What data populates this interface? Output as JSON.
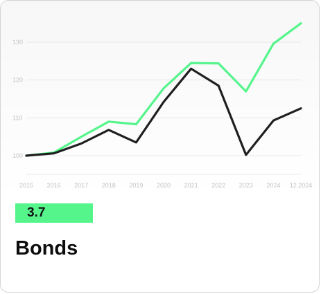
{
  "card": {
    "value": "3.7",
    "title": "Bonds"
  },
  "colors": {
    "accent": "#55f58c",
    "line_green": "#55f58c",
    "line_black": "#1f1f1f",
    "tick": "#c2c2c2",
    "grid": "#e8e8e8"
  },
  "chart_data": {
    "type": "line",
    "categories": [
      "2015",
      "2016",
      "2017",
      "2018",
      "2019",
      "2020",
      "2021",
      "2022",
      "2023",
      "2024",
      "12.2024"
    ],
    "y_ticks": [
      100,
      110,
      120,
      130
    ],
    "ylim": [
      96,
      137
    ],
    "grid": "horizontal",
    "series": [
      {
        "color": "#55f58c",
        "values": [
          100,
          100.8,
          105,
          109,
          108.3,
          117.8,
          124.5,
          124.4,
          117,
          129.6,
          135
        ]
      },
      {
        "color": "#1f1f1f",
        "values": [
          100,
          100.6,
          103.2,
          106.8,
          103.5,
          114.2,
          123,
          118.5,
          100.2,
          109.3,
          112.5
        ]
      }
    ]
  }
}
